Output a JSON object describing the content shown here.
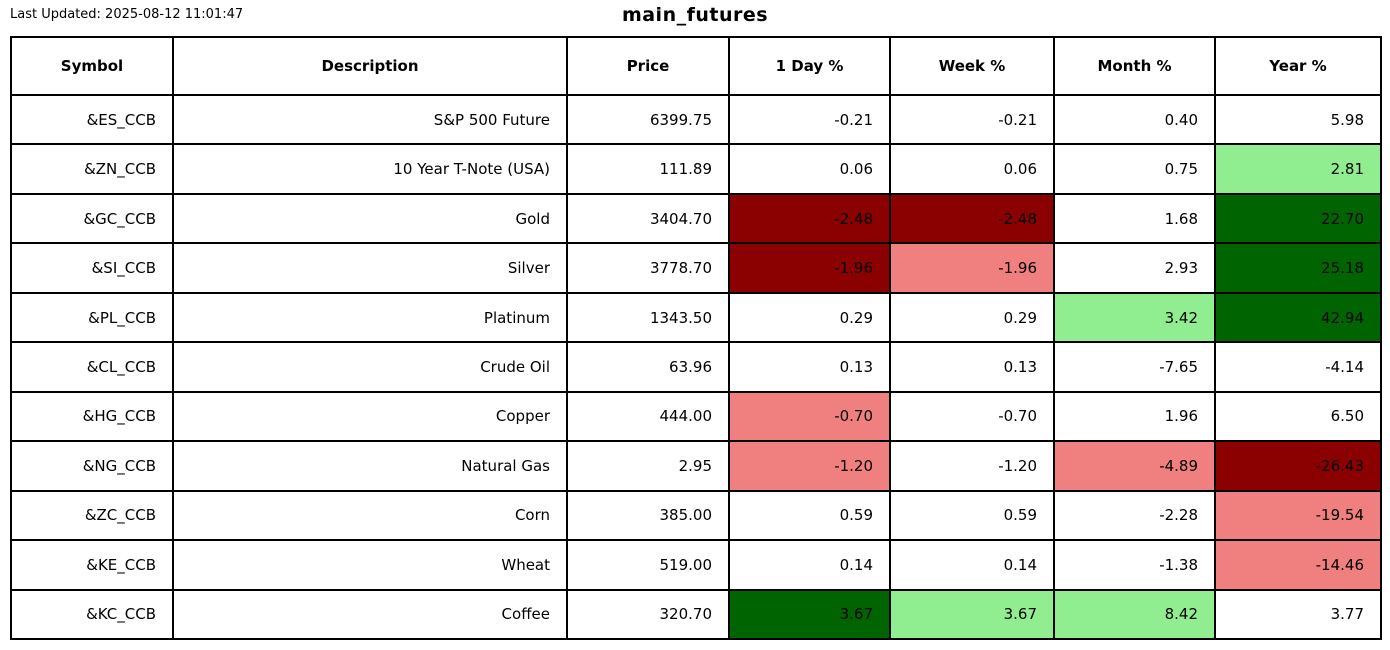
{
  "page": {
    "last_updated": "Last Updated: 2025-08-12 11:01:47",
    "title": "main_futures"
  },
  "colors": {
    "dark_green": "#006400",
    "light_green": "#90EE90",
    "dark_red": "#8B0000",
    "light_red": "#F08080",
    "none": "#FFFFFF",
    "border": "#000000",
    "text": "#000000"
  },
  "chart_data": {
    "type": "table",
    "title": "main_futures",
    "columns": [
      {
        "key": "symbol",
        "label": "Symbol"
      },
      {
        "key": "description",
        "label": "Description"
      },
      {
        "key": "price",
        "label": "Price"
      },
      {
        "key": "day",
        "label": "1 Day %"
      },
      {
        "key": "week",
        "label": "Week %"
      },
      {
        "key": "month",
        "label": "Month %"
      },
      {
        "key": "year",
        "label": "Year %"
      }
    ],
    "rows": [
      {
        "symbol": "&ES_CCB",
        "description": "S&P 500 Future",
        "price": "6399.75",
        "day": "-0.21",
        "week": "-0.21",
        "month": "0.40",
        "year": "5.98",
        "highlight": {
          "day": "none",
          "week": "none",
          "month": "none",
          "year": "none"
        }
      },
      {
        "symbol": "&ZN_CCB",
        "description": "10 Year T-Note (USA)",
        "price": "111.89",
        "day": "0.06",
        "week": "0.06",
        "month": "0.75",
        "year": "2.81",
        "highlight": {
          "day": "none",
          "week": "none",
          "month": "none",
          "year": "light_green"
        }
      },
      {
        "symbol": "&GC_CCB",
        "description": "Gold",
        "price": "3404.70",
        "day": "-2.48",
        "week": "-2.48",
        "month": "1.68",
        "year": "22.70",
        "highlight": {
          "day": "dark_red",
          "week": "dark_red",
          "month": "none",
          "year": "dark_green"
        }
      },
      {
        "symbol": "&SI_CCB",
        "description": "Silver",
        "price": "3778.70",
        "day": "-1.96",
        "week": "-1.96",
        "month": "2.93",
        "year": "25.18",
        "highlight": {
          "day": "dark_red",
          "week": "light_red",
          "month": "none",
          "year": "dark_green"
        }
      },
      {
        "symbol": "&PL_CCB",
        "description": "Platinum",
        "price": "1343.50",
        "day": "0.29",
        "week": "0.29",
        "month": "3.42",
        "year": "42.94",
        "highlight": {
          "day": "none",
          "week": "none",
          "month": "light_green",
          "year": "dark_green"
        }
      },
      {
        "symbol": "&CL_CCB",
        "description": "Crude Oil",
        "price": "63.96",
        "day": "0.13",
        "week": "0.13",
        "month": "-7.65",
        "year": "-4.14",
        "highlight": {
          "day": "none",
          "week": "none",
          "month": "none",
          "year": "none"
        }
      },
      {
        "symbol": "&HG_CCB",
        "description": "Copper",
        "price": "444.00",
        "day": "-0.70",
        "week": "-0.70",
        "month": "1.96",
        "year": "6.50",
        "highlight": {
          "day": "light_red",
          "week": "none",
          "month": "none",
          "year": "none"
        }
      },
      {
        "symbol": "&NG_CCB",
        "description": "Natural Gas",
        "price": "2.95",
        "day": "-1.20",
        "week": "-1.20",
        "month": "-4.89",
        "year": "-26.43",
        "highlight": {
          "day": "light_red",
          "week": "none",
          "month": "light_red",
          "year": "dark_red"
        }
      },
      {
        "symbol": "&ZC_CCB",
        "description": "Corn",
        "price": "385.00",
        "day": "0.59",
        "week": "0.59",
        "month": "-2.28",
        "year": "-19.54",
        "highlight": {
          "day": "none",
          "week": "none",
          "month": "none",
          "year": "light_red"
        }
      },
      {
        "symbol": "&KE_CCB",
        "description": "Wheat",
        "price": "519.00",
        "day": "0.14",
        "week": "0.14",
        "month": "-1.38",
        "year": "-14.46",
        "highlight": {
          "day": "none",
          "week": "none",
          "month": "none",
          "year": "light_red"
        }
      },
      {
        "symbol": "&KC_CCB",
        "description": "Coffee",
        "price": "320.70",
        "day": "3.67",
        "week": "3.67",
        "month": "8.42",
        "year": "3.77",
        "highlight": {
          "day": "dark_green",
          "week": "light_green",
          "month": "light_green",
          "year": "none"
        }
      }
    ]
  }
}
